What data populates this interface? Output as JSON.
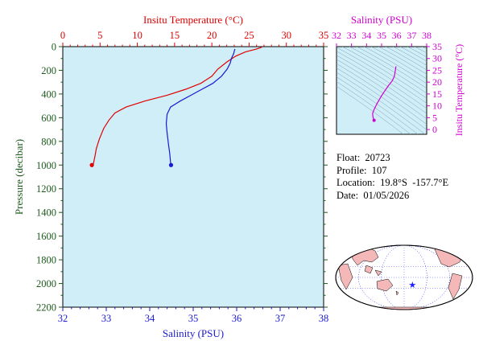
{
  "colors": {
    "temperature": "#e00000",
    "salinity": "#1a1ad0",
    "ts": "#d000d0",
    "pressure_axis": "#1c5a1c",
    "plot_bg": "#d0eef8",
    "land": "#f4b8b8"
  },
  "chart_data": [
    {
      "type": "line",
      "axes": {
        "top": {
          "label": "Insitu Temperature (°C)",
          "range": [
            0,
            35
          ],
          "ticks": [
            0,
            5,
            10,
            15,
            20,
            25,
            30,
            35
          ]
        },
        "bottom": {
          "label": "Salinity (PSU)",
          "range": [
            32,
            38
          ],
          "ticks": [
            32,
            33,
            34,
            35,
            36,
            37,
            38
          ]
        },
        "left": {
          "label": "Pressure (decibar)",
          "range": [
            0,
            2200
          ],
          "reversed": true,
          "ticks": [
            0,
            200,
            400,
            600,
            800,
            1000,
            1200,
            1400,
            1600,
            1800,
            2000,
            2200
          ]
        }
      },
      "series": [
        {
          "variable": "temperature",
          "color": "#e00000",
          "points": [
            [
              26.7,
              5
            ],
            [
              26.0,
              20
            ],
            [
              24.5,
              45
            ],
            [
              23.2,
              80
            ],
            [
              22.0,
              130
            ],
            [
              20.8,
              190
            ],
            [
              20.0,
              250
            ],
            [
              18.5,
              310
            ],
            [
              16.5,
              360
            ],
            [
              14.0,
              410
            ],
            [
              11.0,
              460
            ],
            [
              8.5,
              510
            ],
            [
              7.0,
              560
            ],
            [
              6.2,
              620
            ],
            [
              5.5,
              690
            ],
            [
              4.9,
              780
            ],
            [
              4.5,
              860
            ],
            [
              4.3,
              930
            ],
            [
              4.1,
              990
            ],
            [
              3.9,
              1000
            ]
          ]
        },
        {
          "variable": "salinity",
          "color": "#1a1ad0",
          "points": [
            [
              35.96,
              20
            ],
            [
              35.93,
              60
            ],
            [
              35.88,
              100
            ],
            [
              35.85,
              140
            ],
            [
              35.78,
              190
            ],
            [
              35.65,
              250
            ],
            [
              35.45,
              310
            ],
            [
              35.2,
              360
            ],
            [
              34.95,
              410
            ],
            [
              34.7,
              460
            ],
            [
              34.48,
              510
            ],
            [
              34.4,
              570
            ],
            [
              34.38,
              650
            ],
            [
              34.4,
              730
            ],
            [
              34.43,
              820
            ],
            [
              34.46,
              900
            ],
            [
              34.48,
              980
            ],
            [
              34.49,
              1000
            ]
          ]
        }
      ]
    },
    {
      "type": "scatter",
      "subtype": "T-S diagram",
      "axes": {
        "top": {
          "label": "Salinity (PSU)",
          "range": [
            32,
            38
          ],
          "ticks": [
            32,
            33,
            34,
            35,
            36,
            37,
            38
          ]
        },
        "right": {
          "label": "Insitu Temperature (°C)",
          "range": [
            -2,
            35
          ],
          "ticks": [
            0,
            5,
            10,
            15,
            20,
            25,
            30,
            35
          ]
        }
      },
      "series": [
        {
          "variable": "t-s",
          "color": "#d000d0",
          "points": [
            [
              35.96,
              26.7
            ],
            [
              35.85,
              22.5
            ],
            [
              35.7,
              20.5
            ],
            [
              35.45,
              18.5
            ],
            [
              35.2,
              16.2
            ],
            [
              34.95,
              13.8
            ],
            [
              34.7,
              11.0
            ],
            [
              34.5,
              8.5
            ],
            [
              34.4,
              6.8
            ],
            [
              34.42,
              5.5
            ],
            [
              34.46,
              4.6
            ],
            [
              34.49,
              4.0
            ],
            [
              34.5,
              3.9
            ]
          ]
        }
      ]
    }
  ],
  "info": {
    "float": "Float:  20723",
    "profile": "Profile:  107",
    "location": "Location:  19.8°S  -157.7°E",
    "date": "Date:  01/05/2026"
  },
  "map": {
    "marker_lat": -19.8,
    "marker_lon": -157.7,
    "marker_color": "#2020ff",
    "grid_color": "#2020ff"
  }
}
